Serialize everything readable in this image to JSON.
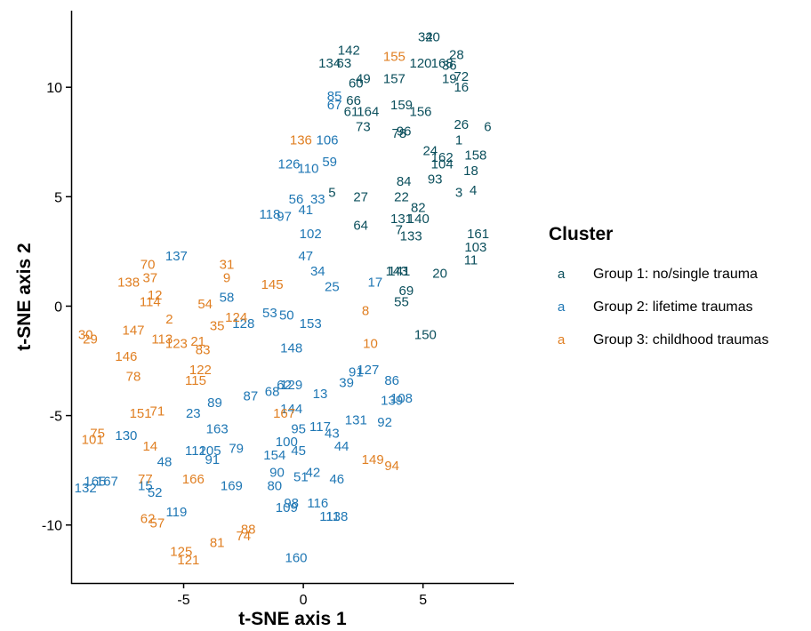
{
  "chart_data": {
    "type": "scatter",
    "xlabel": "t-SNE axis 1",
    "ylabel": "t-SNE axis 2",
    "xlim": [
      -9.7,
      8.8
    ],
    "ylim": [
      -12.65,
      13.5
    ],
    "xticks": [
      -5,
      0,
      5
    ],
    "yticks": [
      -10,
      -5,
      0,
      5,
      10
    ],
    "xtick_labels": [
      "-5",
      "0",
      "5"
    ],
    "ytick_labels": [
      "-10",
      "-5",
      "0",
      "5",
      "10"
    ],
    "grid": false,
    "legend": {
      "title": "Cluster",
      "placement": "right",
      "key_glyph": "a",
      "items": [
        "Group 1: no/single trauma",
        "Group 2: lifetime traumas",
        "Group 3: childhood traumas"
      ]
    },
    "series": [
      {
        "name": "Group 1: no/single trauma",
        "color": "#0b4f5c",
        "points": [
          [
            "32",
            5.1,
            12.3
          ],
          [
            "40",
            5.4,
            12.3
          ],
          [
            "28",
            6.4,
            11.5
          ],
          [
            "142",
            1.9,
            11.7
          ],
          [
            "168",
            5.8,
            11.1
          ],
          [
            "36",
            6.1,
            11.0
          ],
          [
            "134",
            1.1,
            11.1
          ],
          [
            "63",
            1.7,
            11.1
          ],
          [
            "120",
            4.9,
            11.1
          ],
          [
            "72",
            6.6,
            10.5
          ],
          [
            "19",
            6.1,
            10.4
          ],
          [
            "16",
            6.6,
            10.0
          ],
          [
            "157",
            3.8,
            10.4
          ],
          [
            "60",
            2.2,
            10.2
          ],
          [
            "49",
            2.5,
            10.4
          ],
          [
            "66",
            2.1,
            9.4
          ],
          [
            "159",
            4.1,
            9.2
          ],
          [
            "156",
            4.9,
            8.9
          ],
          [
            "61",
            2.0,
            8.9
          ],
          [
            "164",
            2.7,
            8.9
          ],
          [
            "26",
            6.6,
            8.3
          ],
          [
            "6",
            7.7,
            8.2
          ],
          [
            "73",
            2.5,
            8.2
          ],
          [
            "96",
            4.2,
            8.0
          ],
          [
            "78",
            4.0,
            7.9
          ],
          [
            "1",
            6.5,
            7.6
          ],
          [
            "24",
            5.3,
            7.1
          ],
          [
            "158",
            7.2,
            6.9
          ],
          [
            "162",
            5.8,
            6.8
          ],
          [
            "104",
            5.8,
            6.5
          ],
          [
            "18",
            7.0,
            6.2
          ],
          [
            "93",
            5.5,
            5.8
          ],
          [
            "84",
            4.2,
            5.7
          ],
          [
            "3",
            6.5,
            5.2
          ],
          [
            "4",
            7.1,
            5.3
          ],
          [
            "5",
            1.2,
            5.2
          ],
          [
            "22",
            4.1,
            5.0
          ],
          [
            "27",
            2.4,
            5.0
          ],
          [
            "82",
            4.8,
            4.5
          ],
          [
            "131",
            4.1,
            4.0
          ],
          [
            "140",
            4.8,
            4.0
          ],
          [
            "64",
            2.4,
            3.7
          ],
          [
            "7",
            4.0,
            3.5
          ],
          [
            "133",
            4.5,
            3.2
          ],
          [
            "161",
            7.3,
            3.3
          ],
          [
            "103",
            7.2,
            2.7
          ],
          [
            "11",
            7.0,
            2.1
          ],
          [
            "143",
            3.9,
            1.6
          ],
          [
            "141",
            4.0,
            1.6
          ],
          [
            "20",
            5.7,
            1.5
          ],
          [
            "69",
            4.3,
            0.7
          ],
          [
            "55",
            4.1,
            0.2
          ],
          [
            "150",
            5.1,
            -1.3
          ]
        ]
      },
      {
        "name": "Group 2: lifetime traumas",
        "color": "#1f77b4",
        "points": [
          [
            "85",
            1.3,
            9.6
          ],
          [
            "67",
            1.3,
            9.2
          ],
          [
            "106",
            1.0,
            7.6
          ],
          [
            "59",
            1.1,
            6.6
          ],
          [
            "126",
            -0.6,
            6.5
          ],
          [
            "110",
            0.2,
            6.3
          ],
          [
            "56",
            -0.3,
            4.9
          ],
          [
            "33",
            0.6,
            4.9
          ],
          [
            "41",
            0.1,
            4.4
          ],
          [
            "118",
            -1.4,
            4.2
          ],
          [
            "97",
            -0.8,
            4.1
          ],
          [
            "102",
            0.3,
            3.3
          ],
          [
            "137",
            -5.3,
            2.3
          ],
          [
            "47",
            0.1,
            2.3
          ],
          [
            "34",
            0.6,
            1.6
          ],
          [
            "25",
            1.2,
            0.9
          ],
          [
            "17",
            3.0,
            1.1
          ],
          [
            "58",
            -3.2,
            0.4
          ],
          [
            "53",
            -1.4,
            -0.3
          ],
          [
            "50",
            -0.7,
            -0.4
          ],
          [
            "153",
            0.3,
            -0.8
          ],
          [
            "128",
            -2.5,
            -0.8
          ],
          [
            "148",
            -0.5,
            -1.9
          ],
          [
            "91",
            2.2,
            -3.0
          ],
          [
            "127",
            2.7,
            -2.9
          ],
          [
            "86",
            3.7,
            -3.4
          ],
          [
            "39",
            1.8,
            -3.5
          ],
          [
            "68",
            -1.3,
            -3.9
          ],
          [
            "62",
            -0.8,
            -3.6
          ],
          [
            "129",
            -0.5,
            -3.6
          ],
          [
            "13",
            0.7,
            -4.0
          ],
          [
            "87",
            -2.2,
            -4.1
          ],
          [
            "89",
            -3.7,
            -4.4
          ],
          [
            "139",
            3.7,
            -4.3
          ],
          [
            "108",
            4.1,
            -4.2
          ],
          [
            "23",
            -4.6,
            -4.9
          ],
          [
            "144",
            -0.5,
            -4.7
          ],
          [
            "131",
            2.2,
            -5.2
          ],
          [
            "92",
            3.4,
            -5.3
          ],
          [
            "163",
            -3.6,
            -5.6
          ],
          [
            "117",
            0.7,
            -5.5
          ],
          [
            "95",
            -0.2,
            -5.6
          ],
          [
            "43",
            1.2,
            -5.8
          ],
          [
            "130",
            -7.4,
            -5.9
          ],
          [
            "100",
            -0.7,
            -6.2
          ],
          [
            "112",
            -4.5,
            -6.6
          ],
          [
            "105",
            -3.9,
            -6.6
          ],
          [
            "79",
            -2.8,
            -6.5
          ],
          [
            "45",
            -0.2,
            -6.6
          ],
          [
            "44",
            1.6,
            -6.4
          ],
          [
            "154",
            -1.2,
            -6.8
          ],
          [
            "48",
            -5.8,
            -7.1
          ],
          [
            "91",
            -3.8,
            -7.0
          ],
          [
            "90",
            -1.1,
            -7.6
          ],
          [
            "51",
            -0.1,
            -7.8
          ],
          [
            "42",
            0.4,
            -7.6
          ],
          [
            "46",
            1.4,
            -7.9
          ],
          [
            "80",
            -1.2,
            -8.2
          ],
          [
            "169",
            -3.0,
            -8.2
          ],
          [
            "15",
            -6.6,
            -8.2
          ],
          [
            "52",
            -6.2,
            -8.5
          ],
          [
            "132",
            -9.1,
            -8.3
          ],
          [
            "165",
            -8.7,
            -8.0
          ],
          [
            "167",
            -8.2,
            -8.0
          ],
          [
            "98",
            -0.5,
            -9.0
          ],
          [
            "116",
            0.6,
            -9.0
          ],
          [
            "109",
            -0.7,
            -9.2
          ],
          [
            "119",
            -5.3,
            -9.4
          ],
          [
            "111",
            1.1,
            -9.6
          ],
          [
            "138",
            1.4,
            -9.6
          ],
          [
            "160",
            -0.3,
            -11.5
          ]
        ]
      },
      {
        "name": "Group 3: childhood traumas",
        "color": "#e07f22",
        "points": [
          [
            "155",
            3.8,
            11.4
          ],
          [
            "136",
            -0.1,
            7.6
          ],
          [
            "70",
            -6.5,
            1.9
          ],
          [
            "31",
            -3.2,
            1.9
          ],
          [
            "138",
            -7.3,
            1.1
          ],
          [
            "37",
            -6.4,
            1.3
          ],
          [
            "9",
            -3.2,
            1.3
          ],
          [
            "145",
            -1.3,
            1.0
          ],
          [
            "12",
            -6.2,
            0.5
          ],
          [
            "114",
            -6.4,
            0.2
          ],
          [
            "54",
            -4.1,
            0.1
          ],
          [
            "8",
            2.6,
            -0.2
          ],
          [
            "2",
            -5.6,
            -0.6
          ],
          [
            "124",
            -2.8,
            -0.5
          ],
          [
            "35",
            -3.6,
            -0.9
          ],
          [
            "147",
            -7.1,
            -1.1
          ],
          [
            "30",
            -9.1,
            -1.3
          ],
          [
            "29",
            -8.9,
            -1.5
          ],
          [
            "113",
            -5.9,
            -1.5
          ],
          [
            "21",
            -4.4,
            -1.6
          ],
          [
            "123",
            -5.3,
            -1.7
          ],
          [
            "83",
            -4.2,
            -2.0
          ],
          [
            "10",
            2.8,
            -1.7
          ],
          [
            "146",
            -7.4,
            -2.3
          ],
          [
            "122",
            -4.3,
            -2.9
          ],
          [
            "78",
            -7.1,
            -3.2
          ],
          [
            "115",
            -4.5,
            -3.4
          ],
          [
            "151",
            -6.8,
            -4.9
          ],
          [
            "71",
            -6.1,
            -4.8
          ],
          [
            "167",
            -0.8,
            -4.9
          ],
          [
            "75",
            -8.6,
            -5.8
          ],
          [
            "101",
            -8.8,
            -6.1
          ],
          [
            "14",
            -6.4,
            -6.4
          ],
          [
            "149",
            2.9,
            -7.0
          ],
          [
            "94",
            3.7,
            -7.3
          ],
          [
            "77",
            -6.6,
            -7.9
          ],
          [
            "166",
            -4.6,
            -7.9
          ],
          [
            "62",
            -6.5,
            -9.7
          ],
          [
            "57",
            -6.1,
            -9.9
          ],
          [
            "88",
            -2.3,
            -10.2
          ],
          [
            "74",
            -2.5,
            -10.5
          ],
          [
            "81",
            -3.6,
            -10.8
          ],
          [
            "125",
            -5.1,
            -11.2
          ],
          [
            "121",
            -4.8,
            -11.6
          ]
        ]
      }
    ]
  }
}
